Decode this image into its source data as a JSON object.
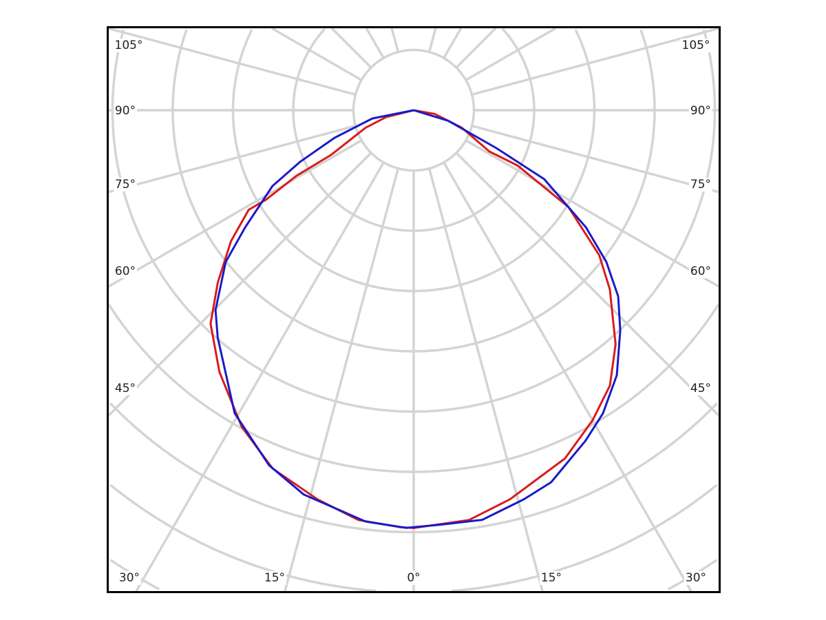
{
  "chart_data": {
    "type": "polar",
    "title": "",
    "angle_zero": "bottom",
    "angle_unit": "deg",
    "grid": true,
    "angle_ticks_left": [
      "105°",
      "90°",
      "75°",
      "60°",
      "45°"
    ],
    "angle_ticks_right": [
      "105°",
      "90°",
      "75°",
      "60°",
      "45°"
    ],
    "angle_ticks_bottom": [
      "30°",
      "15°",
      "0°",
      "15°",
      "30°"
    ],
    "grid_angle_step": 15,
    "radial_rings": [
      1,
      2,
      3,
      4,
      5,
      6,
      7,
      8,
      9,
      10
    ],
    "series": [
      {
        "color": "#d81c1c",
        "points": [
          [
            -90,
            0
          ],
          [
            -76,
            0.47
          ],
          [
            -70,
            0.85
          ],
          [
            -61.6,
            1.56
          ],
          [
            -60.8,
            2.23
          ],
          [
            -58.8,
            2.87
          ],
          [
            -58.9,
            3.2
          ],
          [
            -54.4,
            3.73
          ],
          [
            -48.7,
            4.33
          ],
          [
            -43.6,
            4.89
          ],
          [
            -36.6,
            5.41
          ],
          [
            -28.5,
            5.98
          ],
          [
            -21.5,
            6.39
          ],
          [
            -13.9,
            6.65
          ],
          [
            -7.7,
            6.86
          ],
          [
            -1.9,
            6.92
          ],
          [
            0,
            6.93
          ],
          [
            7.7,
            6.86
          ],
          [
            13.9,
            6.65
          ],
          [
            23.5,
            6.3
          ],
          [
            30,
            5.94
          ],
          [
            35.5,
            5.61
          ],
          [
            40.8,
            5.13
          ],
          [
            47.6,
            4.41
          ],
          [
            52,
            3.91
          ],
          [
            58,
            3.03
          ],
          [
            62,
            1.95
          ],
          [
            61.4,
            1.43
          ],
          [
            70,
            0.85
          ],
          [
            80,
            0.35
          ],
          [
            90,
            0
          ]
        ]
      },
      {
        "color": "#1a1ac8",
        "points": [
          [
            -90,
            0
          ],
          [
            -78.7,
            0.7
          ],
          [
            -70.8,
            1.39
          ],
          [
            -65.6,
            2.07
          ],
          [
            -61.8,
            2.66
          ],
          [
            -55.2,
            3.41
          ],
          [
            -51.1,
            4.01
          ],
          [
            -44.8,
            4.67
          ],
          [
            -40.8,
            4.98
          ],
          [
            -30.6,
            5.84
          ],
          [
            -22.2,
            6.36
          ],
          [
            -16,
            6.63
          ],
          [
            -6.7,
            6.87
          ],
          [
            -1,
            6.93
          ],
          [
            3.8,
            6.89
          ],
          [
            9.5,
            6.89
          ],
          [
            15.8,
            6.71
          ],
          [
            20.3,
            6.58
          ],
          [
            27.5,
            6.18
          ],
          [
            32,
            5.93
          ],
          [
            37.5,
            5.54
          ],
          [
            43.2,
            5.01
          ],
          [
            47.7,
            4.59
          ],
          [
            51.8,
            4.07
          ],
          [
            55.8,
            3.46
          ],
          [
            62.2,
            2.45
          ],
          [
            65.4,
            1.51
          ],
          [
            73,
            0.6
          ],
          [
            90,
            0
          ]
        ]
      }
    ]
  }
}
